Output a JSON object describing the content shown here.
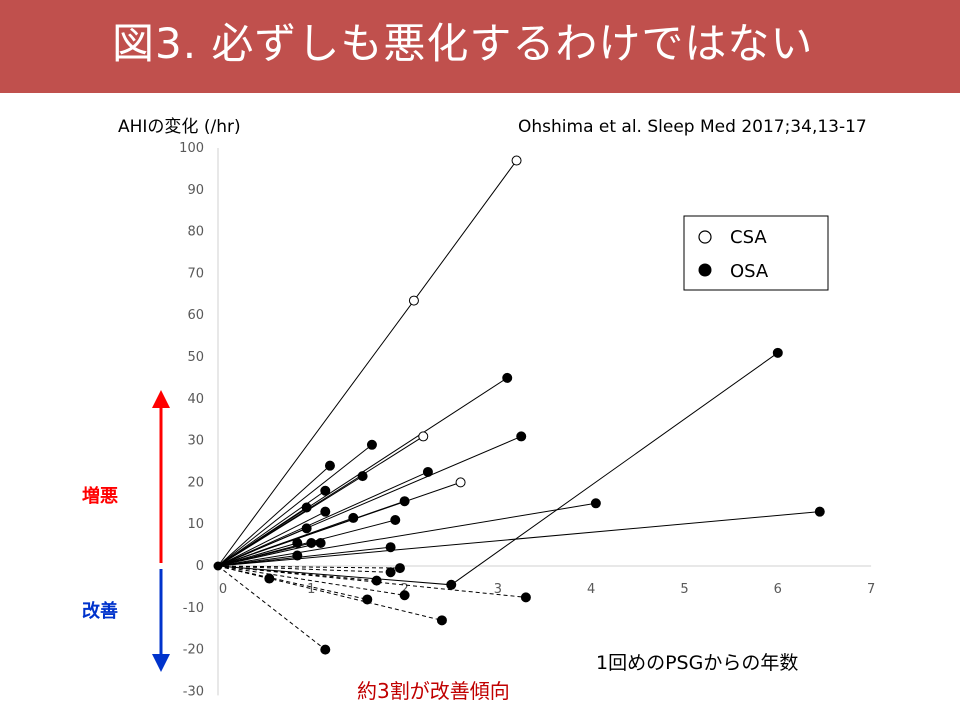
{
  "slide": {
    "title": "図3. 必ずしも悪化するわけではない",
    "citation": "Ohshima et al. Sleep Med 2017;34,13-17",
    "worsen_label": "増悪",
    "improve_label": "改善",
    "footnote": "約3割が改善傾向",
    "colors": {
      "banner": "#c0504d",
      "worsen": "#ff0000",
      "improve": "#0033cc",
      "footnote": "#c00000"
    }
  },
  "chart_data": {
    "type": "scatter",
    "title": "",
    "xlabel": "1回めのPSGからの年数",
    "ylabel": "AHIの変化 (/hr)",
    "xlim": [
      0,
      7
    ],
    "ylim": [
      -30,
      100
    ],
    "x_ticks": [
      0,
      1,
      2,
      3,
      4,
      5,
      6,
      7
    ],
    "y_ticks": [
      100,
      90,
      80,
      70,
      60,
      50,
      40,
      30,
      20,
      10,
      0,
      -10,
      -20,
      -30
    ],
    "grid": false,
    "legend": {
      "position": "top-right",
      "entries": [
        "CSA",
        "OSA"
      ]
    },
    "origin": [
      0,
      0
    ],
    "series": [
      {
        "name": "CSA",
        "marker": "open-circle",
        "points": [
          {
            "x": 3.2,
            "y": 97,
            "via": [
              2.1,
              63.5
            ]
          },
          {
            "x": 2.2,
            "y": 31
          },
          {
            "x": 2.6,
            "y": 20
          }
        ]
      },
      {
        "name": "OSA",
        "marker": "filled-circle",
        "points": [
          {
            "x": 6.0,
            "y": 51,
            "via": [
              2.5,
              -4.5
            ]
          },
          {
            "x": 3.1,
            "y": 45
          },
          {
            "x": 3.25,
            "y": 31
          },
          {
            "x": 1.65,
            "y": 29
          },
          {
            "x": 1.2,
            "y": 24
          },
          {
            "x": 2.25,
            "y": 22.5
          },
          {
            "x": 1.55,
            "y": 21.5
          },
          {
            "x": 1.15,
            "y": 18
          },
          {
            "x": 2.0,
            "y": 15.5
          },
          {
            "x": 4.05,
            "y": 15
          },
          {
            "x": 0.95,
            "y": 14
          },
          {
            "x": 1.15,
            "y": 13
          },
          {
            "x": 6.45,
            "y": 13
          },
          {
            "x": 1.45,
            "y": 11.5
          },
          {
            "x": 1.9,
            "y": 11
          },
          {
            "x": 0.95,
            "y": 9
          },
          {
            "x": 0.85,
            "y": 5.5
          },
          {
            "x": 1.0,
            "y": 5.5
          },
          {
            "x": 1.1,
            "y": 5.5
          },
          {
            "x": 1.85,
            "y": 4.5
          },
          {
            "x": 0.85,
            "y": 2.5
          },
          {
            "x": 1.95,
            "y": -0.5
          },
          {
            "x": 1.85,
            "y": -1.5
          },
          {
            "x": 1.7,
            "y": -3.5
          },
          {
            "x": 0.55,
            "y": -3
          },
          {
            "x": 2.0,
            "y": -7
          },
          {
            "x": 1.6,
            "y": -8
          },
          {
            "x": 3.3,
            "y": -7.5
          },
          {
            "x": 2.4,
            "y": -13
          },
          {
            "x": 1.15,
            "y": -20
          }
        ]
      }
    ],
    "improvement_connectors_dashed": true
  }
}
